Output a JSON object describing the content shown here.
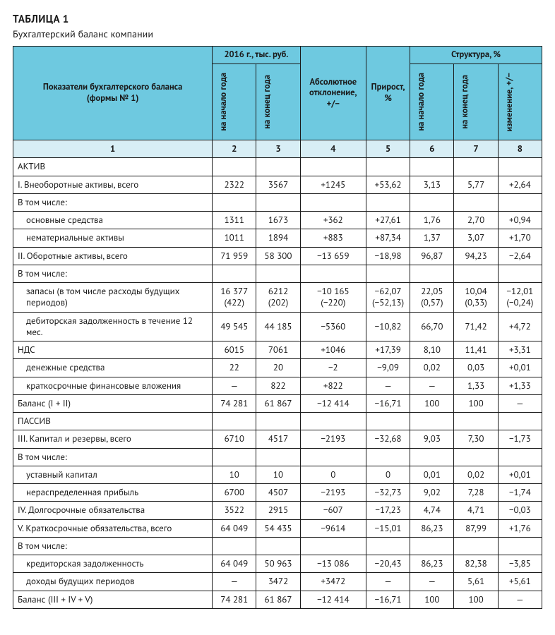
{
  "title": "ТАБЛИЦА 1",
  "subtitle": "Бухгалтерский баланс компании",
  "colors": {
    "header_bg": "#6ec9e0",
    "colnum_bg": "#d8eef5",
    "border": "#1a1a1a",
    "text": "#1a1a1a",
    "page_bg": "#ffffff"
  },
  "typography": {
    "title_fontsize": 15,
    "subtitle_fontsize": 14,
    "cell_fontsize": 13,
    "header_fontsize": 12.5,
    "font_family": "PT Sans"
  },
  "headers": {
    "indicator": "Показатели бухгалтерского баланса\n(формы № 1)",
    "year_group": "2016 г., тыс. руб.",
    "year_start": "на начало года",
    "year_end": "на конец года",
    "abs_dev": "Абсолютное отклонение, +/−",
    "growth": "Прирост, %",
    "struct_group": "Структура, %",
    "struct_start": "на начало года",
    "struct_end": "на конец года",
    "struct_change": "изменение, +/−",
    "colnums": [
      "1",
      "2",
      "3",
      "4",
      "5",
      "6",
      "7",
      "8"
    ]
  },
  "rows": [
    {
      "label": "АКТИВ",
      "indent": 0,
      "cells": [
        "",
        "",
        "",
        "",
        "",
        "",
        ""
      ]
    },
    {
      "label": "I. Внеоборотные активы, всего",
      "indent": 0,
      "cells": [
        "2322",
        "3567",
        "+1245",
        "+53,62",
        "3,13",
        "5,77",
        "+2,64"
      ]
    },
    {
      "label": "В том числе:",
      "indent": 0,
      "cells": [
        "",
        "",
        "",
        "",
        "",
        "",
        ""
      ]
    },
    {
      "label": "основные средства",
      "indent": 1,
      "cells": [
        "1311",
        "1673",
        "+362",
        "+27,61",
        "1,76",
        "2,70",
        "+0,94"
      ]
    },
    {
      "label": "нематериальные активы",
      "indent": 1,
      "cells": [
        "1011",
        "1894",
        "+883",
        "+87,34",
        "1,37",
        "3,07",
        "+1,70"
      ]
    },
    {
      "label": "II. Оборотные активы, всего",
      "indent": 0,
      "cells": [
        "71 959",
        "58 300",
        "−13 659",
        "−18,98",
        "96,87",
        "94,23",
        "−2,64"
      ]
    },
    {
      "label": "В том числе:",
      "indent": 0,
      "cells": [
        "",
        "",
        "",
        "",
        "",
        "",
        ""
      ]
    },
    {
      "label": "запасы (в том числе расходы будущих периодов)",
      "indent": 1,
      "cells": [
        "16 377\n(422)",
        "6212\n(202)",
        "−10 165\n(−220)",
        "−62,07\n(−52,13)",
        "22,05\n(0,57)",
        "10,04\n(0,33)",
        "−12,01\n(−0,24)"
      ]
    },
    {
      "label": "дебиторская задолженность в течение 12 мес.",
      "indent": 1,
      "cells": [
        "49 545",
        "44 185",
        "−5360",
        "−10,82",
        "66,70",
        "71,42",
        "+4,72"
      ]
    },
    {
      "label": "НДС",
      "indent": 0,
      "cells": [
        "6015",
        "7061",
        "+1046",
        "+17,39",
        "8,10",
        "11,41",
        "+3,31"
      ]
    },
    {
      "label": "денежные средства",
      "indent": 1,
      "cells": [
        "22",
        "20",
        "−2",
        "−9,09",
        "0,02",
        "0,03",
        "+0,01"
      ]
    },
    {
      "label": "краткосрочные финансовые вложения",
      "indent": 1,
      "cells": [
        "—",
        "822",
        "+822",
        "—",
        "—",
        "1,33",
        "+1,33"
      ]
    },
    {
      "label": "Баланс (I + II)",
      "indent": 0,
      "cells": [
        "74 281",
        "61 867",
        "−12 414",
        "−16,71",
        "100",
        "100",
        "—"
      ]
    },
    {
      "label": "ПАССИВ",
      "indent": 0,
      "cells": [
        "",
        "",
        "",
        "",
        "",
        "",
        ""
      ]
    },
    {
      "label": "III. Капитал и резервы, всего",
      "indent": 0,
      "cells": [
        "6710",
        "4517",
        "−2193",
        "−32,68",
        "9,03",
        "7,30",
        "−1,73"
      ]
    },
    {
      "label": "В том числе:",
      "indent": 0,
      "cells": [
        "",
        "",
        "",
        "",
        "",
        "",
        ""
      ]
    },
    {
      "label": "уставный капитал",
      "indent": 1,
      "cells": [
        "10",
        "10",
        "0",
        "0",
        "0,01",
        "0,02",
        "+0,01"
      ]
    },
    {
      "label": "нераспределенная прибыль",
      "indent": 1,
      "cells": [
        "6700",
        "4507",
        "−2193",
        "−32,73",
        "9,02",
        "7,28",
        "−1,74"
      ]
    },
    {
      "label": "IV. Долгосрочные обязательства",
      "indent": 0,
      "cells": [
        "3522",
        "2915",
        "−607",
        "−17,23",
        "4,74",
        "4,71",
        "−0,03"
      ]
    },
    {
      "label": "V. Краткосрочные обязательства, всего",
      "indent": 0,
      "cells": [
        "64 049",
        "54 435",
        "−9614",
        "−15,01",
        "86,23",
        "87,99",
        "+1,76"
      ]
    },
    {
      "label": "В том числе:",
      "indent": 0,
      "cells": [
        "",
        "",
        "",
        "",
        "",
        "",
        ""
      ]
    },
    {
      "label": "кредиторская задолженность",
      "indent": 1,
      "cells": [
        "64 049",
        "50 963",
        "−13 086",
        "−20,43",
        "86,23",
        "82,38",
        "−3,85"
      ]
    },
    {
      "label": "доходы будущих периодов",
      "indent": 1,
      "cells": [
        "—",
        "3472",
        "+3472",
        "—",
        "—",
        "5,61",
        "+5,61"
      ]
    },
    {
      "label": "Баланс (III + IV + V)",
      "indent": 0,
      "cells": [
        "74 281",
        "61 867",
        "−12 414",
        "−16,71",
        "100",
        "100",
        "—"
      ]
    }
  ]
}
